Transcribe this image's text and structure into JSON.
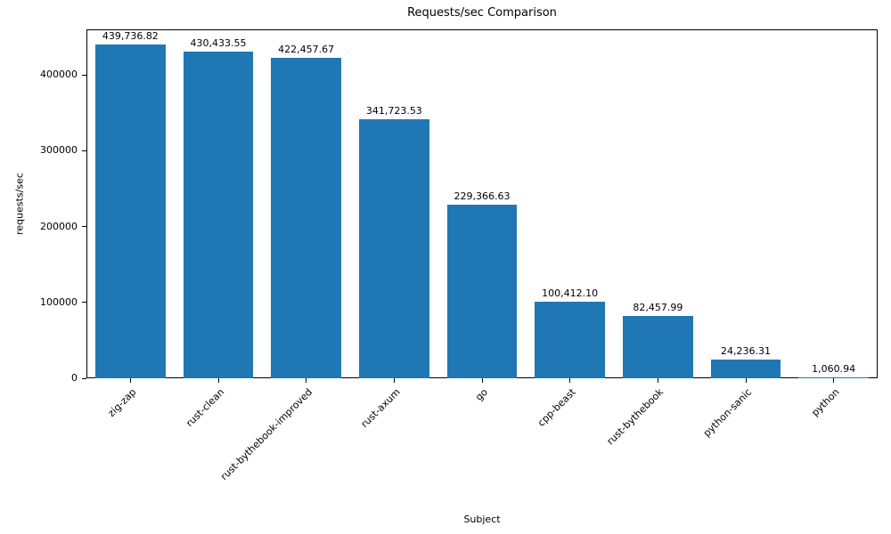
{
  "figure": {
    "kind": "matplotlib-style bar chart"
  },
  "chart_data": {
    "type": "bar",
    "title": "Requests/sec Comparison",
    "xlabel": "Subject",
    "ylabel": "requests/sec",
    "categories": [
      "zig-zap",
      "rust-clean",
      "rust-bythebook-improved",
      "rust-axum",
      "go",
      "cpp-beast",
      "rust-bythebook",
      "python-sanic",
      "python"
    ],
    "values": [
      439736.82,
      430433.55,
      422457.67,
      341723.53,
      229366.63,
      100412.1,
      82457.99,
      24236.31,
      1060.94
    ],
    "value_labels": [
      "439,736.82",
      "430,433.55",
      "422,457.67",
      "341,723.53",
      "229,366.63",
      "100,412.10",
      "82,457.99",
      "24,236.31",
      "1,060.94"
    ],
    "bar_color": "#1f77b4",
    "ylim": [
      0,
      460000
    ],
    "yticks": [
      0,
      100000,
      200000,
      300000,
      400000
    ],
    "ytick_labels": [
      "0",
      "100000",
      "200000",
      "300000",
      "400000"
    ],
    "grid": false,
    "legend": false,
    "x_tick_rotation": 45,
    "bar_width_fraction": 0.8
  }
}
